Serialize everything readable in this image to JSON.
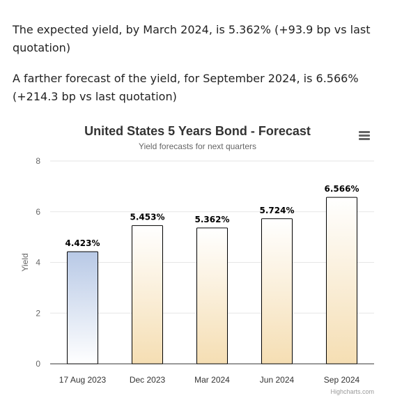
{
  "text": {
    "paragraph_1": "The expected yield, by March 2024, is 5.362% (+93.9 bp vs last quotation)",
    "paragraph_2": "A farther forecast of the yield, for September 2024, is 6.566% (+214.3 bp vs last quotation)"
  },
  "chart": {
    "credits": "Highcharts.com",
    "menu_icon": "hamburger-menu-icon"
  },
  "chart_data": {
    "type": "bar",
    "title": "United States 5 Years Bond - Forecast",
    "subtitle": "Yield forecasts for next quarters",
    "ylabel": "Yield",
    "xlabel": "",
    "ylim": [
      0,
      8
    ],
    "yticks": [
      "0",
      "2",
      "4",
      "6",
      "8"
    ],
    "grid": true,
    "categories": [
      "17 Aug 2023",
      "Dec 2023",
      "Mar 2024",
      "Jun 2024",
      "Sep 2024"
    ],
    "values": [
      4.423,
      5.453,
      5.362,
      5.724,
      6.566
    ],
    "labels": [
      "4.423%",
      "5.453%",
      "5.362%",
      "5.724%",
      "6.566%"
    ],
    "colors": {
      "current_top": "#b8c9e6",
      "current_bottom": "#ffffff",
      "forecast_top": "#ffffff",
      "forecast_bottom": "#f5deb3",
      "bar_border": "#000000",
      "grid": "#e6e6e6"
    }
  }
}
